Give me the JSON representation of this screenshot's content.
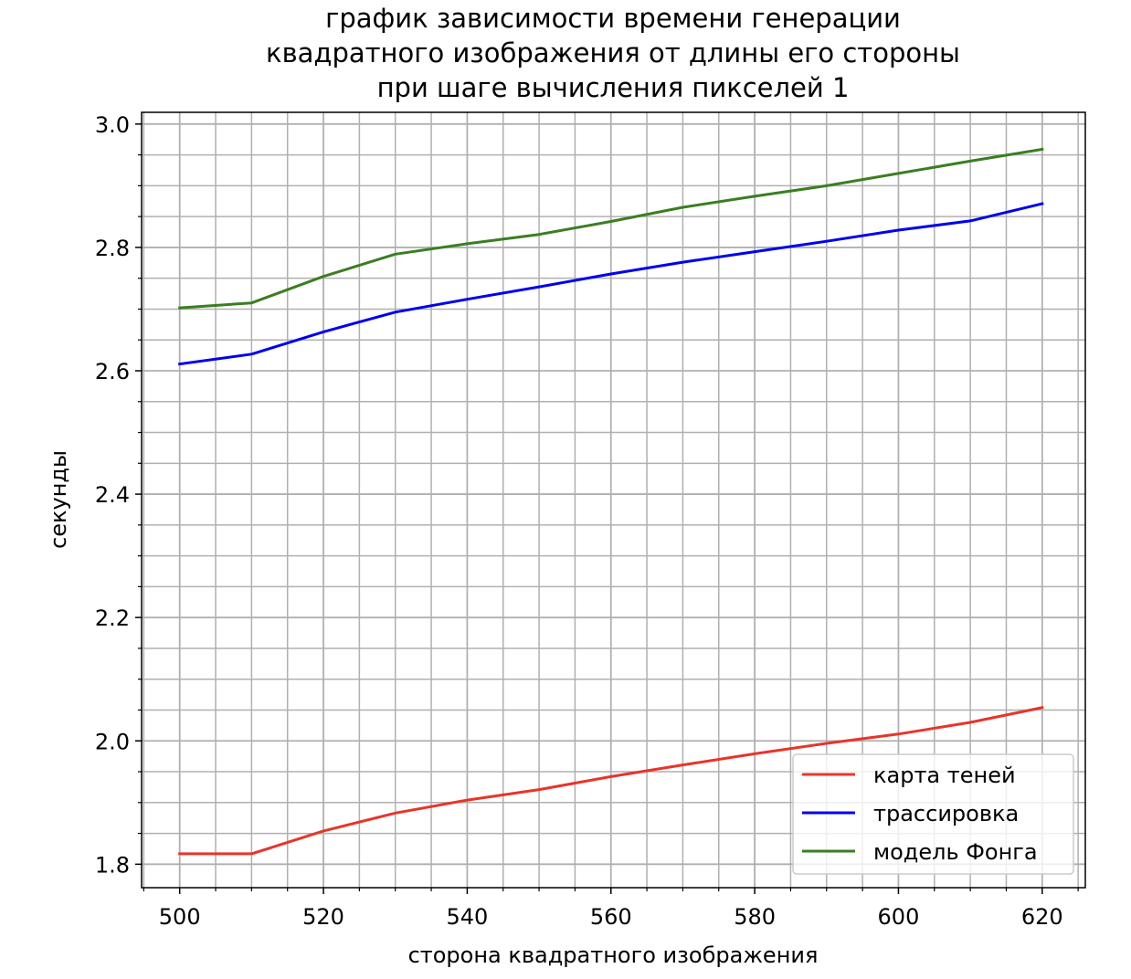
{
  "chart_data": {
    "type": "line",
    "title_lines": [
      "график зависимости времени генерации",
      "квадратного изображения от длины его стороны",
      "при шаге вычисления пикселей 1"
    ],
    "xlabel": "сторона квадратного изображения",
    "ylabel": "секунды",
    "x": [
      500,
      510,
      520,
      530,
      540,
      550,
      560,
      570,
      580,
      590,
      600,
      610,
      620
    ],
    "xlim": [
      494.7,
      626
    ],
    "ylim": [
      1.762,
      3.019
    ],
    "x_major_ticks": [
      500,
      520,
      540,
      560,
      580,
      600,
      620
    ],
    "x_tick_labels": [
      "500",
      "520",
      "540",
      "560",
      "580",
      "600",
      "620"
    ],
    "x_minor_step": 5,
    "y_major_ticks": [
      1.8,
      2.0,
      2.2,
      2.4,
      2.6,
      2.8,
      3.0
    ],
    "y_tick_labels": [
      "1.8",
      "2.0",
      "2.2",
      "2.4",
      "2.6",
      "2.8",
      "3.0"
    ],
    "y_minor_step": 0.05,
    "grid": true,
    "legend_position": "bottom-right",
    "series": [
      {
        "name": "карта теней",
        "color": "#e8342a",
        "values": [
          1.817,
          1.817,
          1.854,
          1.883,
          1.904,
          1.921,
          1.942,
          1.961,
          1.979,
          1.996,
          2.011,
          2.03,
          2.054
        ]
      },
      {
        "name": "трассировка",
        "color": "#0000ee",
        "values": [
          2.611,
          2.627,
          2.663,
          2.695,
          2.716,
          2.736,
          2.757,
          2.776,
          2.793,
          2.81,
          2.828,
          2.843,
          2.871
        ]
      },
      {
        "name": "модель Фонга",
        "color": "#3a7e22",
        "values": [
          2.702,
          2.71,
          2.753,
          2.789,
          2.806,
          2.821,
          2.842,
          2.865,
          2.883,
          2.9,
          2.92,
          2.94,
          2.959
        ]
      }
    ]
  }
}
